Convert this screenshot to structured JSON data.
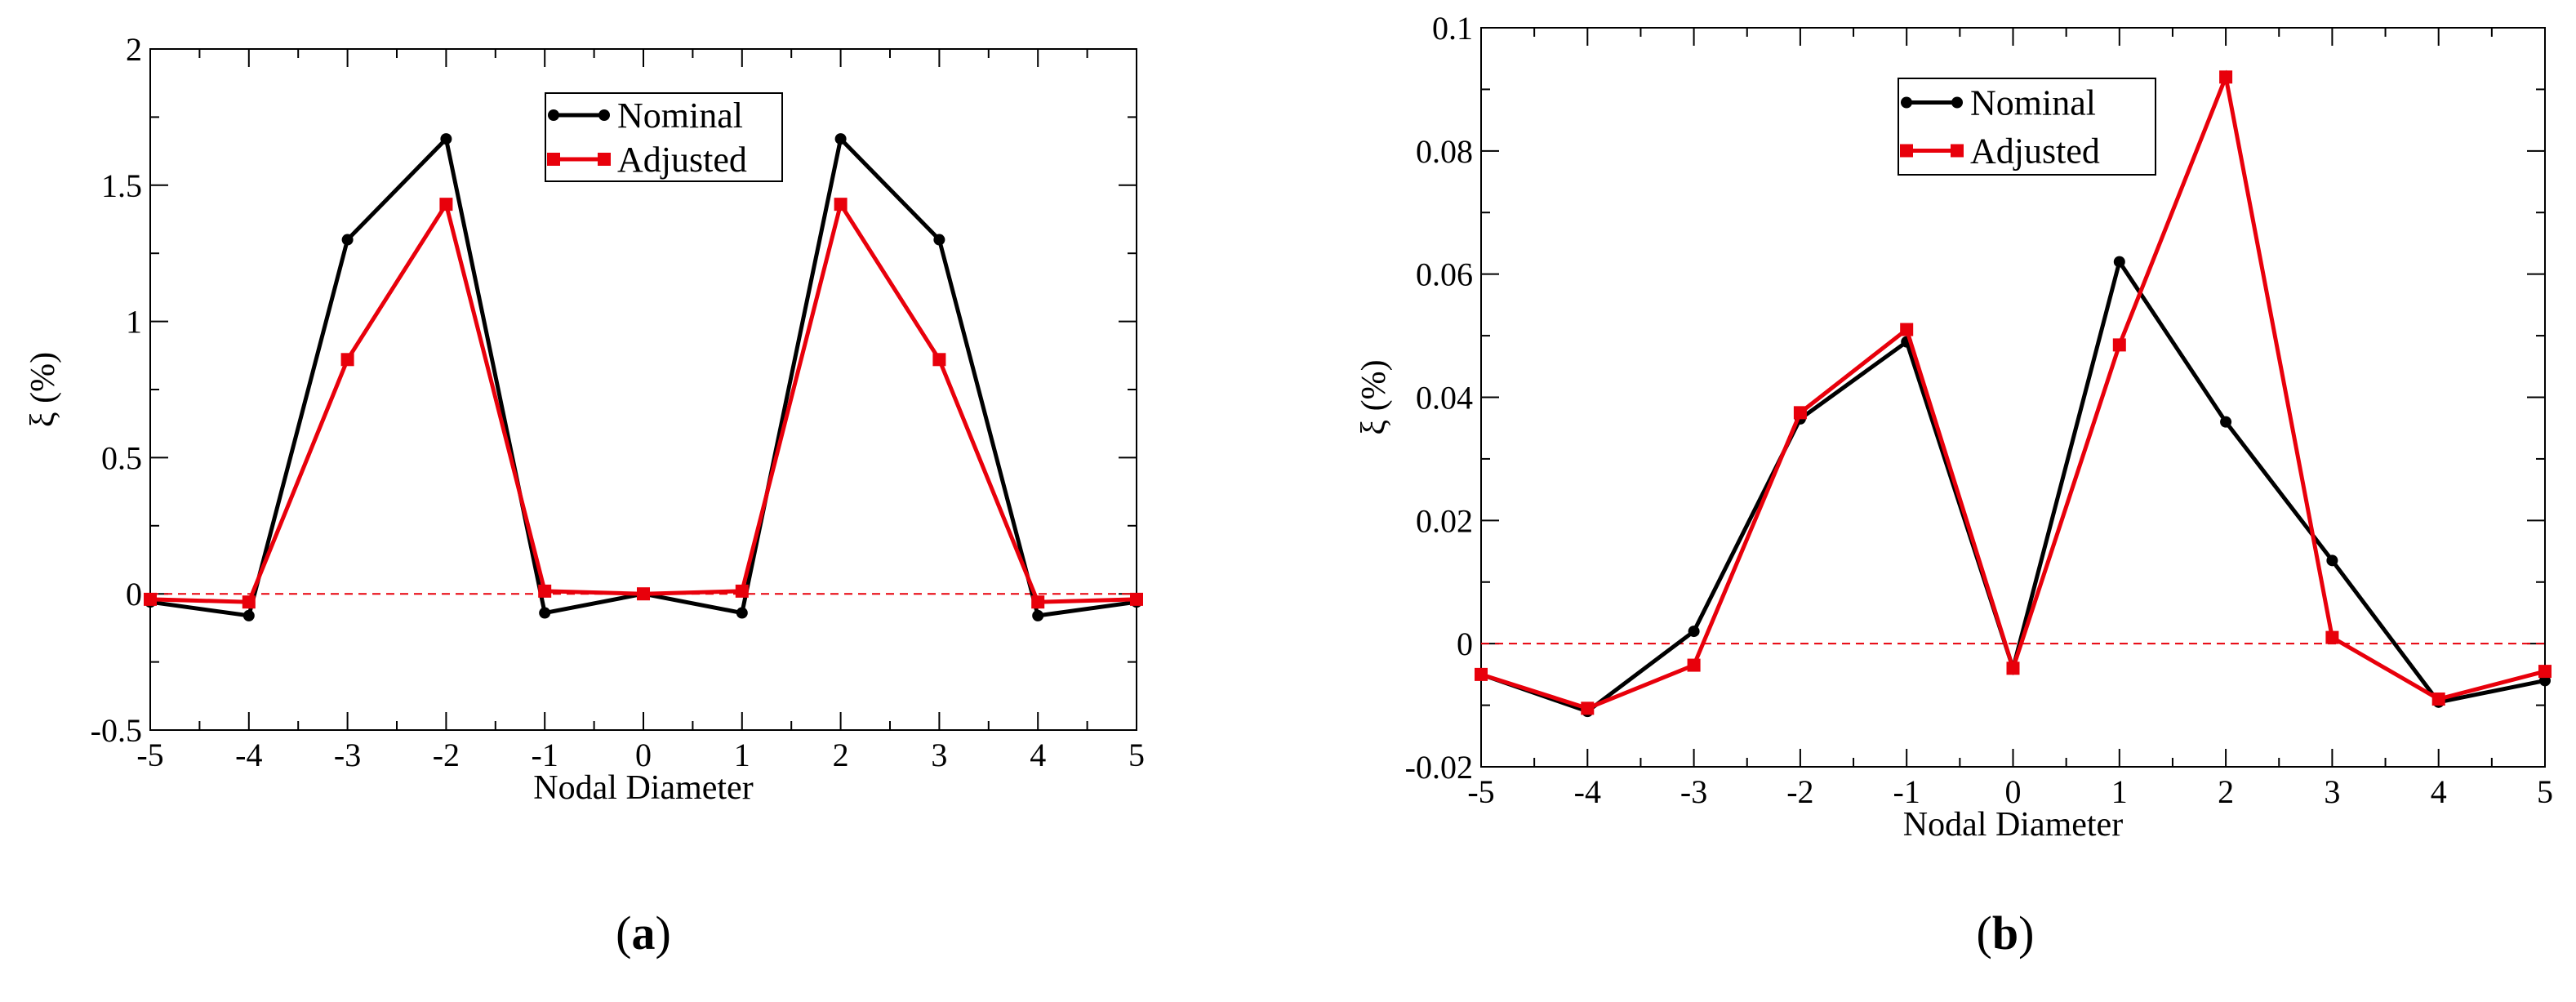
{
  "chart_data": [
    {
      "type": "line",
      "panel_label": "a",
      "xlabel": "Nodal Diameter",
      "ylabel": "ξ (%)",
      "xlim": [
        -5,
        5
      ],
      "ylim": [
        -0.5,
        2
      ],
      "x_ticks": [
        "-5",
        "-4",
        "-3",
        "-2",
        "-1",
        "0",
        "1",
        "2",
        "3",
        "4",
        "5"
      ],
      "y_ticks": [
        "-0.5",
        "0",
        "0.5",
        "1",
        "1.5",
        "2"
      ],
      "x_tick_values": [
        -5,
        -4,
        -3,
        -2,
        -1,
        0,
        1,
        2,
        3,
        4,
        5
      ],
      "y_tick_values": [
        -0.5,
        0,
        0.5,
        1,
        1.5,
        2
      ],
      "reference_line": {
        "y": 0,
        "color": "#e8000b",
        "style": "dashed"
      },
      "legend": {
        "position": "top-center"
      },
      "x": [
        -5,
        -4,
        -3,
        -2,
        -1,
        0,
        1,
        2,
        3,
        4,
        5
      ],
      "series": [
        {
          "name": "Nominal",
          "color": "#000000",
          "marker": "circle",
          "values": [
            -0.03,
            -0.08,
            1.3,
            1.67,
            -0.07,
            0.0,
            -0.07,
            1.67,
            1.3,
            -0.08,
            -0.03
          ]
        },
        {
          "name": "Adjusted",
          "color": "#e8000b",
          "marker": "square",
          "values": [
            -0.02,
            -0.03,
            0.86,
            1.43,
            0.01,
            0.0,
            0.01,
            1.43,
            0.86,
            -0.03,
            -0.02
          ]
        }
      ]
    },
    {
      "type": "line",
      "panel_label": "b",
      "xlabel": "Nodal Diameter",
      "ylabel": "ξ (%)",
      "xlim": [
        -5,
        5
      ],
      "ylim": [
        -0.02,
        0.1
      ],
      "x_ticks": [
        "-5",
        "-4",
        "-3",
        "-2",
        "-1",
        "0",
        "1",
        "2",
        "3",
        "4",
        "5"
      ],
      "y_ticks": [
        "-0.02",
        "0",
        "0.02",
        "0.04",
        "0.06",
        "0.08",
        "0.1"
      ],
      "x_tick_values": [
        -5,
        -4,
        -3,
        -2,
        -1,
        0,
        1,
        2,
        3,
        4,
        5
      ],
      "y_tick_values": [
        -0.02,
        0,
        0.02,
        0.04,
        0.06,
        0.08,
        0.1
      ],
      "reference_line": {
        "y": 0,
        "color": "#e8000b",
        "style": "dashed"
      },
      "legend": {
        "position": "top-center"
      },
      "x": [
        -5,
        -4,
        -3,
        -2,
        -1,
        0,
        1,
        2,
        3,
        4,
        5
      ],
      "series": [
        {
          "name": "Nominal",
          "color": "#000000",
          "marker": "circle",
          "values": [
            -0.005,
            -0.011,
            0.002,
            0.0365,
            0.049,
            -0.004,
            0.062,
            0.036,
            0.0135,
            -0.0095,
            -0.006
          ]
        },
        {
          "name": "Adjusted",
          "color": "#e8000b",
          "marker": "square",
          "values": [
            -0.005,
            -0.0105,
            -0.0035,
            0.0375,
            0.051,
            -0.004,
            0.0485,
            0.092,
            0.001,
            -0.009,
            -0.0045
          ]
        }
      ]
    }
  ]
}
